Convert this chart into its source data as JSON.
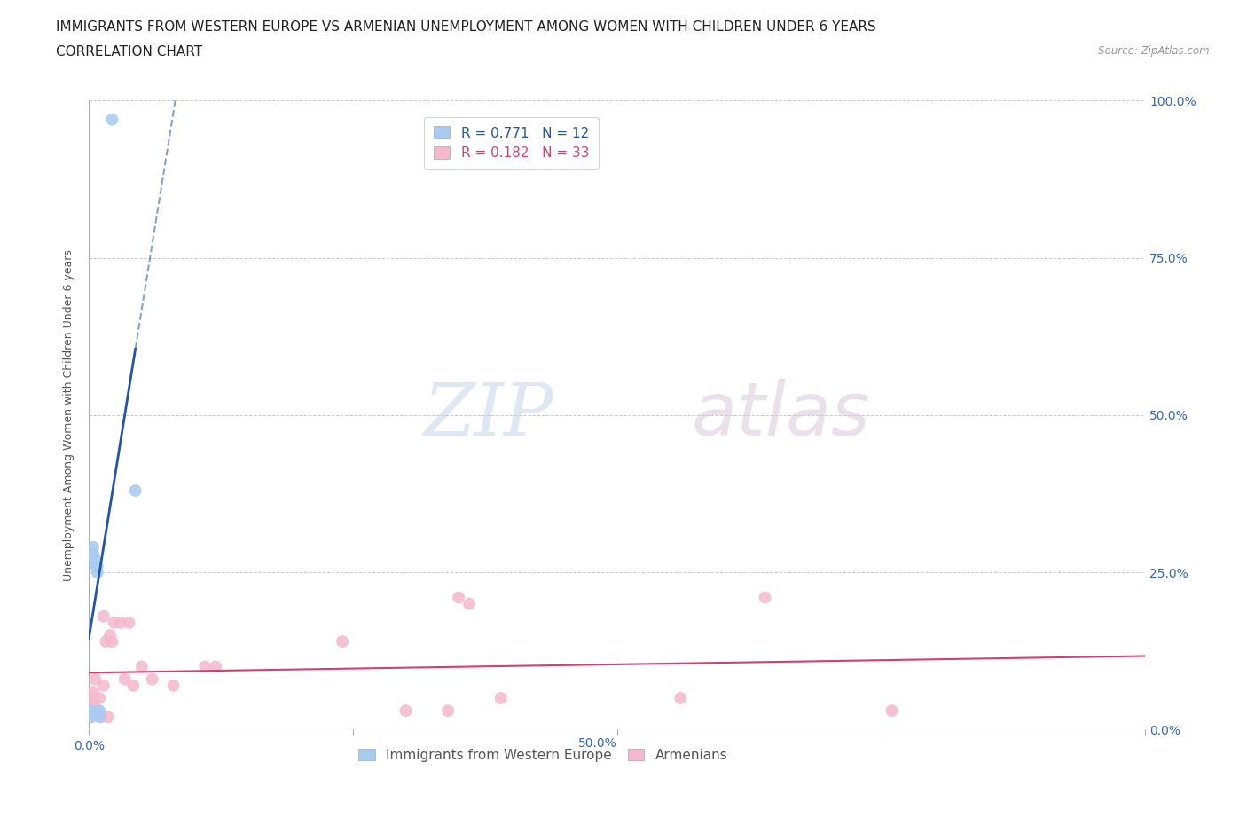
{
  "title_line1": "IMMIGRANTS FROM WESTERN EUROPE VS ARMENIAN UNEMPLOYMENT AMONG WOMEN WITH CHILDREN UNDER 6 YEARS",
  "title_line2": "CORRELATION CHART",
  "source_text": "Source: ZipAtlas.com",
  "ylabel": "Unemployment Among Women with Children Under 6 years",
  "watermark_zip": "ZIP",
  "watermark_atlas": "atlas",
  "blue_points_x": [
    0.001,
    0.001,
    0.002,
    0.002,
    0.003,
    0.003,
    0.004,
    0.004,
    0.005,
    0.005,
    0.011,
    0.022
  ],
  "blue_points_y": [
    0.02,
    0.03,
    0.28,
    0.29,
    0.26,
    0.27,
    0.25,
    0.26,
    0.02,
    0.03,
    0.97,
    0.38
  ],
  "pink_points_x": [
    0.001,
    0.001,
    0.002,
    0.002,
    0.003,
    0.004,
    0.005,
    0.006,
    0.007,
    0.007,
    0.008,
    0.009,
    0.01,
    0.011,
    0.012,
    0.015,
    0.017,
    0.019,
    0.021,
    0.025,
    0.03,
    0.04,
    0.055,
    0.06,
    0.12,
    0.15,
    0.17,
    0.175,
    0.18,
    0.195,
    0.28,
    0.32,
    0.38
  ],
  "pink_points_y": [
    0.05,
    0.02,
    0.04,
    0.06,
    0.08,
    0.03,
    0.05,
    0.02,
    0.18,
    0.07,
    0.14,
    0.02,
    0.15,
    0.14,
    0.17,
    0.17,
    0.08,
    0.17,
    0.07,
    0.1,
    0.08,
    0.07,
    0.1,
    0.1,
    0.14,
    0.03,
    0.03,
    0.21,
    0.2,
    0.05,
    0.05,
    0.21,
    0.03
  ],
  "blue_R": 0.771,
  "blue_N": 12,
  "pink_R": 0.182,
  "pink_N": 33,
  "blue_color": "#a8ccf0",
  "pink_color": "#f4b8cc",
  "blue_line_color": "#2255aa",
  "pink_line_color": "#d04070",
  "xlim": [
    0.0,
    0.5
  ],
  "ylim": [
    0.0,
    1.0
  ],
  "ytick_positions": [
    0.0,
    0.25,
    0.5,
    0.75,
    1.0
  ],
  "ytick_labels_right": [
    "0.0%",
    "25.0%",
    "50.0%",
    "75.0%",
    "100.0%"
  ],
  "xtick_positions": [
    0.0,
    0.125,
    0.25,
    0.375,
    0.5
  ],
  "title_fontsize": 11,
  "subtitle_fontsize": 11,
  "axis_label_fontsize": 9,
  "legend_fontsize": 11,
  "marker_size": 100,
  "background_color": "#ffffff",
  "grid_color": "#cccccc"
}
